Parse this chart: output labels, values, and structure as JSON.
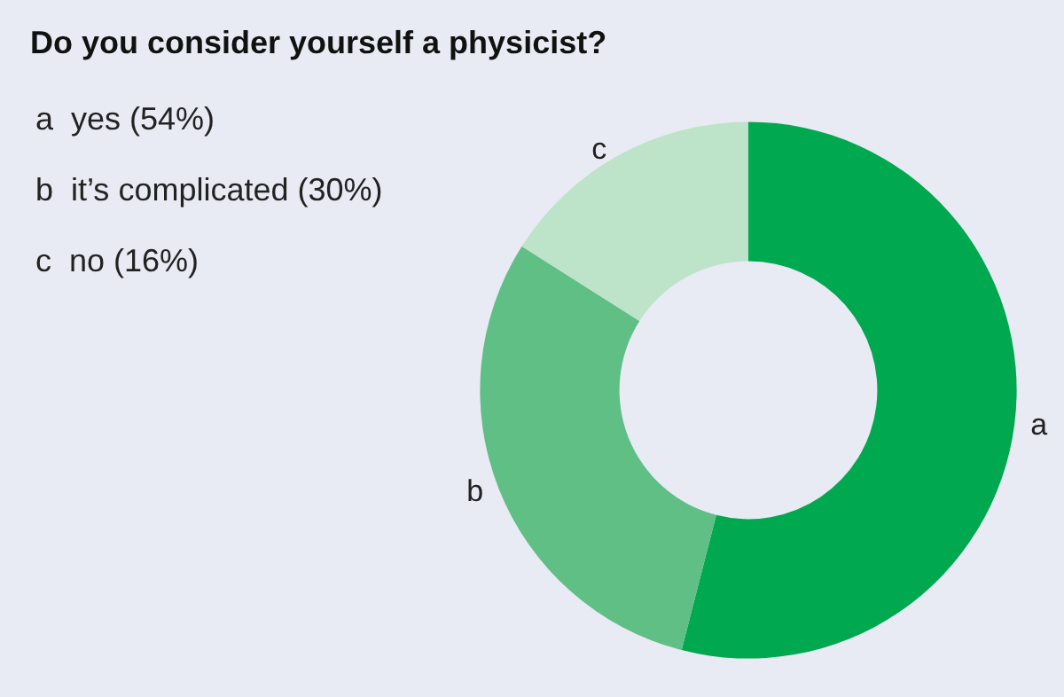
{
  "chart_data": {
    "type": "donut",
    "title": "Do you consider yourself a physicist?",
    "categories": [
      "a",
      "b",
      "c"
    ],
    "values": [
      54,
      30,
      16
    ],
    "colors": [
      "#00a84f",
      "#5fbf85",
      "#bde3c8"
    ],
    "annotations": [
      "a  yes (54%)",
      "b  it’s complicated (30%)",
      "c  no (16%)"
    ],
    "legend": false
  }
}
